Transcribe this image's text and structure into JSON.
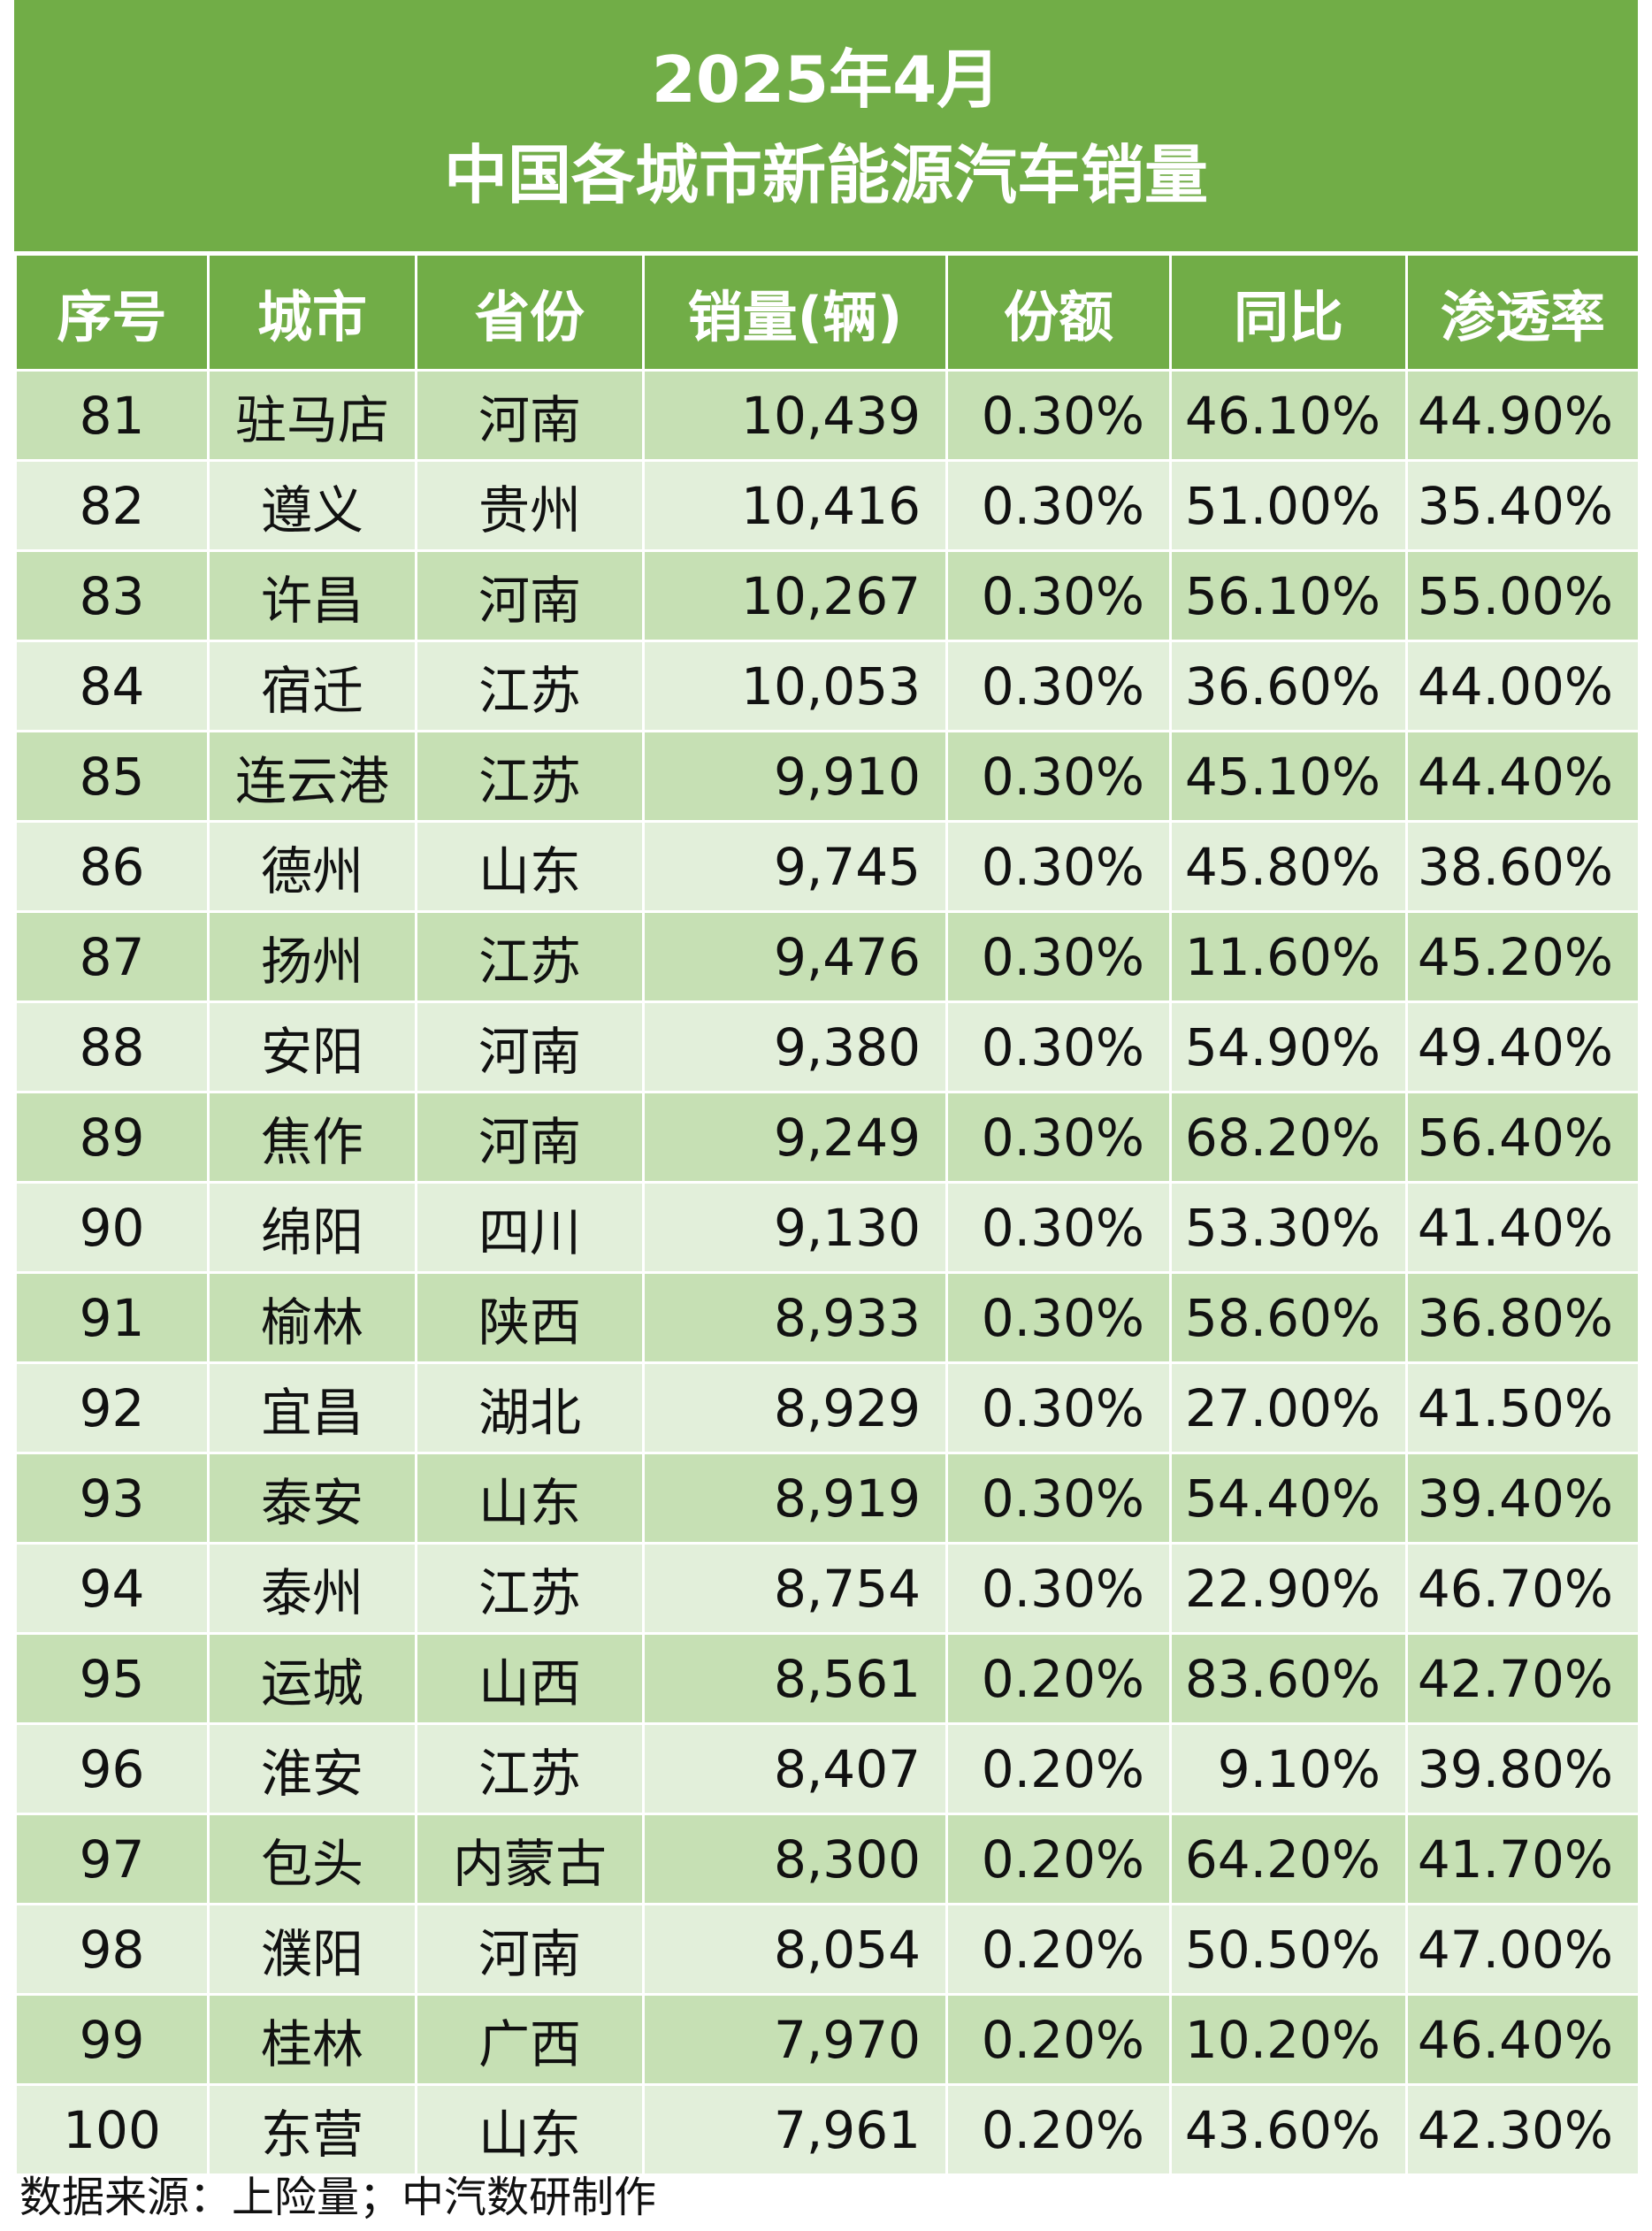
{
  "title": {
    "line1": "2025年4月",
    "line2": "中国各城市新能源汽车销量"
  },
  "table": {
    "headers": [
      "序号",
      "城市",
      "省份",
      "销量(辆)",
      "份额",
      "同比",
      "渗透率"
    ],
    "rows": [
      [
        "81",
        "驻马店",
        "河南",
        "10,439",
        "0.30%",
        "46.10%",
        "44.90%"
      ],
      [
        "82",
        "遵义",
        "贵州",
        "10,416",
        "0.30%",
        "51.00%",
        "35.40%"
      ],
      [
        "83",
        "许昌",
        "河南",
        "10,267",
        "0.30%",
        "56.10%",
        "55.00%"
      ],
      [
        "84",
        "宿迁",
        "江苏",
        "10,053",
        "0.30%",
        "36.60%",
        "44.00%"
      ],
      [
        "85",
        "连云港",
        "江苏",
        "9,910",
        "0.30%",
        "45.10%",
        "44.40%"
      ],
      [
        "86",
        "德州",
        "山东",
        "9,745",
        "0.30%",
        "45.80%",
        "38.60%"
      ],
      [
        "87",
        "扬州",
        "江苏",
        "9,476",
        "0.30%",
        "11.60%",
        "45.20%"
      ],
      [
        "88",
        "安阳",
        "河南",
        "9,380",
        "0.30%",
        "54.90%",
        "49.40%"
      ],
      [
        "89",
        "焦作",
        "河南",
        "9,249",
        "0.30%",
        "68.20%",
        "56.40%"
      ],
      [
        "90",
        "绵阳",
        "四川",
        "9,130",
        "0.30%",
        "53.30%",
        "41.40%"
      ],
      [
        "91",
        "榆林",
        "陕西",
        "8,933",
        "0.30%",
        "58.60%",
        "36.80%"
      ],
      [
        "92",
        "宜昌",
        "湖北",
        "8,929",
        "0.30%",
        "27.00%",
        "41.50%"
      ],
      [
        "93",
        "泰安",
        "山东",
        "8,919",
        "0.30%",
        "54.40%",
        "39.40%"
      ],
      [
        "94",
        "泰州",
        "江苏",
        "8,754",
        "0.30%",
        "22.90%",
        "46.70%"
      ],
      [
        "95",
        "运城",
        "山西",
        "8,561",
        "0.20%",
        "83.60%",
        "42.70%"
      ],
      [
        "96",
        "淮安",
        "江苏",
        "8,407",
        "0.20%",
        "9.10%",
        "39.80%"
      ],
      [
        "97",
        "包头",
        "内蒙古",
        "8,300",
        "0.20%",
        "64.20%",
        "41.70%"
      ],
      [
        "98",
        "濮阳",
        "河南",
        "8,054",
        "0.20%",
        "50.50%",
        "47.00%"
      ],
      [
        "99",
        "桂林",
        "广西",
        "7,970",
        "0.20%",
        "10.20%",
        "46.40%"
      ],
      [
        "100",
        "东营",
        "山东",
        "7,961",
        "0.20%",
        "43.60%",
        "42.30%"
      ]
    ]
  },
  "footer": "数据来源：上险量；中汽数研制作",
  "colors": {
    "header_green": "#71ad47",
    "row_dark": "#c6e0b4",
    "row_light": "#e2efda"
  }
}
